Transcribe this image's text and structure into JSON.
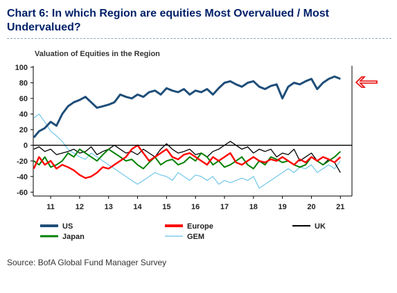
{
  "header": {
    "title": "Chart 6: In which Region are equities Most Overvalued / Most Undervalued?"
  },
  "footer": {
    "source": "Source: BofA Global Fund Manager Survey"
  },
  "chart_data": {
    "type": "line",
    "title": "Valuation of Equities in the Region",
    "xlabel": "",
    "ylabel": "",
    "ylim": [
      -65,
      100
    ],
    "yticks": [
      100,
      80,
      60,
      40,
      20,
      0,
      -20,
      -40,
      -60
    ],
    "xlim": [
      2010.4,
      2021.4
    ],
    "xtick_labels": [
      "11",
      "12",
      "13",
      "14",
      "15",
      "16",
      "17",
      "18",
      "19",
      "20",
      "21"
    ],
    "xtick_positions": [
      2011,
      2012,
      2013,
      2014,
      2015,
      2016,
      2017,
      2018,
      2019,
      2020,
      2021
    ],
    "zero_line": true,
    "grid": false,
    "legend_position": "bottom",
    "series": [
      {
        "name": "US",
        "color": "#1f4e79",
        "x": [
          2010.42,
          2010.6,
          2010.8,
          2011.0,
          2011.2,
          2011.4,
          2011.6,
          2011.8,
          2012.0,
          2012.2,
          2012.4,
          2012.6,
          2012.8,
          2013.0,
          2013.2,
          2013.4,
          2013.6,
          2013.8,
          2014.0,
          2014.2,
          2014.4,
          2014.6,
          2014.8,
          2015.0,
          2015.2,
          2015.4,
          2015.6,
          2015.8,
          2016.0,
          2016.2,
          2016.4,
          2016.6,
          2016.8,
          2017.0,
          2017.2,
          2017.4,
          2017.6,
          2017.8,
          2018.0,
          2018.2,
          2018.4,
          2018.6,
          2018.8,
          2019.0,
          2019.2,
          2019.4,
          2019.6,
          2019.8,
          2020.0,
          2020.2,
          2020.4,
          2020.6,
          2020.8,
          2021.0
        ],
        "values": [
          10,
          18,
          22,
          30,
          25,
          40,
          50,
          55,
          58,
          62,
          55,
          48,
          50,
          52,
          55,
          65,
          62,
          60,
          65,
          62,
          68,
          70,
          65,
          73,
          70,
          68,
          72,
          65,
          70,
          68,
          72,
          65,
          73,
          80,
          82,
          78,
          75,
          80,
          82,
          75,
          72,
          76,
          78,
          60,
          75,
          80,
          78,
          82,
          85,
          72,
          80,
          85,
          88,
          85
        ]
      },
      {
        "name": "Europe",
        "color": "#ff0000",
        "x": [
          2010.42,
          2010.6,
          2010.8,
          2011.0,
          2011.2,
          2011.4,
          2011.6,
          2011.8,
          2012.0,
          2012.2,
          2012.4,
          2012.6,
          2012.8,
          2013.0,
          2013.2,
          2013.4,
          2013.6,
          2013.8,
          2014.0,
          2014.2,
          2014.4,
          2014.6,
          2014.8,
          2015.0,
          2015.2,
          2015.4,
          2015.6,
          2015.8,
          2016.0,
          2016.2,
          2016.4,
          2016.6,
          2016.8,
          2017.0,
          2017.2,
          2017.4,
          2017.6,
          2017.8,
          2018.0,
          2018.2,
          2018.4,
          2018.6,
          2018.8,
          2019.0,
          2019.2,
          2019.4,
          2019.6,
          2019.8,
          2020.0,
          2020.2,
          2020.4,
          2020.6,
          2020.8,
          2021.0
        ],
        "values": [
          -30,
          -15,
          -25,
          -20,
          -30,
          -25,
          -28,
          -32,
          -38,
          -42,
          -40,
          -35,
          -28,
          -30,
          -25,
          -20,
          -15,
          -5,
          0,
          -10,
          -20,
          -15,
          -10,
          -5,
          -15,
          -18,
          -12,
          -10,
          -15,
          -20,
          -25,
          -15,
          -20,
          -15,
          -10,
          -22,
          -25,
          -20,
          -15,
          -20,
          -22,
          -18,
          -20,
          -15,
          -20,
          -25,
          -18,
          -22,
          -15,
          -20,
          -15,
          -18,
          -22,
          -15
        ]
      },
      {
        "name": "UK",
        "color": "#000000",
        "x": [
          2010.42,
          2010.6,
          2010.8,
          2011.0,
          2011.2,
          2011.4,
          2011.6,
          2011.8,
          2012.0,
          2012.2,
          2012.4,
          2012.6,
          2012.8,
          2013.0,
          2013.2,
          2013.4,
          2013.6,
          2013.8,
          2014.0,
          2014.2,
          2014.4,
          2014.6,
          2014.8,
          2015.0,
          2015.2,
          2015.4,
          2015.6,
          2015.8,
          2016.0,
          2016.2,
          2016.4,
          2016.6,
          2016.8,
          2017.0,
          2017.2,
          2017.4,
          2017.6,
          2017.8,
          2018.0,
          2018.2,
          2018.4,
          2018.6,
          2018.8,
          2019.0,
          2019.2,
          2019.4,
          2019.6,
          2019.8,
          2020.0,
          2020.2,
          2020.4,
          2020.6,
          2020.8,
          2021.0
        ],
        "values": [
          -5,
          -2,
          -8,
          -5,
          -12,
          -10,
          -8,
          -5,
          -10,
          -8,
          -2,
          -12,
          -8,
          -5,
          0,
          -5,
          -10,
          -8,
          -12,
          -5,
          -10,
          -15,
          -5,
          2,
          -5,
          -10,
          -8,
          -5,
          -12,
          -10,
          -15,
          -8,
          -5,
          0,
          5,
          0,
          -5,
          -2,
          -10,
          -5,
          -8,
          -5,
          -15,
          -10,
          -12,
          -5,
          -20,
          -15,
          -10,
          -20,
          -25,
          -18,
          -22,
          -35
        ]
      },
      {
        "name": "Japan",
        "color": "#008000",
        "x": [
          2010.42,
          2010.6,
          2010.8,
          2011.0,
          2011.2,
          2011.4,
          2011.6,
          2011.8,
          2012.0,
          2012.2,
          2012.4,
          2012.6,
          2012.8,
          2013.0,
          2013.2,
          2013.4,
          2013.6,
          2013.8,
          2014.0,
          2014.2,
          2014.4,
          2014.6,
          2014.8,
          2015.0,
          2015.2,
          2015.4,
          2015.6,
          2015.8,
          2016.0,
          2016.2,
          2016.4,
          2016.6,
          2016.8,
          2017.0,
          2017.2,
          2017.4,
          2017.6,
          2017.8,
          2018.0,
          2018.2,
          2018.4,
          2018.6,
          2018.8,
          2019.0,
          2019.2,
          2019.4,
          2019.6,
          2019.8,
          2020.0,
          2020.2,
          2020.4,
          2020.6,
          2020.8,
          2021.0
        ],
        "values": [
          -20,
          -25,
          -15,
          -28,
          -25,
          -20,
          -10,
          -15,
          -5,
          -10,
          -15,
          -20,
          -12,
          -5,
          -10,
          -15,
          -20,
          -18,
          -25,
          -30,
          -22,
          -15,
          -25,
          -20,
          -18,
          -25,
          -22,
          -15,
          -20,
          -10,
          -15,
          -25,
          -20,
          -28,
          -25,
          -20,
          -15,
          -25,
          -30,
          -20,
          -25,
          -15,
          -18,
          -22,
          -20,
          -25,
          -28,
          -25,
          -15,
          -20,
          -25,
          -20,
          -15,
          -8
        ]
      },
      {
        "name": "GEM",
        "color": "#66c2e8",
        "x": [
          2010.42,
          2010.6,
          2010.8,
          2011.0,
          2011.2,
          2011.4,
          2011.6,
          2011.8,
          2012.0,
          2012.2,
          2012.4,
          2012.6,
          2012.8,
          2013.0,
          2013.2,
          2013.4,
          2013.6,
          2013.8,
          2014.0,
          2014.2,
          2014.4,
          2014.6,
          2014.8,
          2015.0,
          2015.2,
          2015.4,
          2015.6,
          2015.8,
          2016.0,
          2016.2,
          2016.4,
          2016.6,
          2016.8,
          2017.0,
          2017.2,
          2017.4,
          2017.6,
          2017.8,
          2018.0,
          2018.2,
          2018.4,
          2018.6,
          2018.8,
          2019.0,
          2019.2,
          2019.4,
          2019.6,
          2019.8,
          2020.0,
          2020.2,
          2020.4,
          2020.6,
          2020.8,
          2021.0
        ],
        "values": [
          35,
          40,
          30,
          18,
          12,
          5,
          -5,
          -10,
          -15,
          -18,
          -10,
          -15,
          -20,
          -25,
          -30,
          -35,
          -40,
          -45,
          -50,
          -45,
          -40,
          -35,
          -38,
          -40,
          -45,
          -35,
          -40,
          -45,
          -38,
          -40,
          -45,
          -40,
          -50,
          -45,
          -48,
          -45,
          -42,
          -45,
          -40,
          -55,
          -50,
          -45,
          -40,
          -35,
          -30,
          -35,
          -28,
          -30,
          -25,
          -35,
          -30,
          -25,
          -30,
          -20
        ]
      }
    ]
  }
}
